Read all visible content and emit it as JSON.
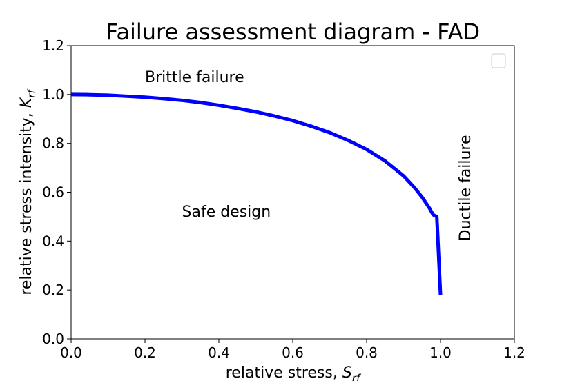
{
  "chart_data": {
    "type": "line",
    "title": "Failure assessment diagram - FAD",
    "xlabel": {
      "main": "relative stress, ",
      "symbol": "S",
      "sub": "rf"
    },
    "ylabel": {
      "main": "relative stress intensity, ",
      "symbol": "K",
      "sub": "rf"
    },
    "xlim": [
      0.0,
      1.2
    ],
    "ylim": [
      0.0,
      1.2
    ],
    "xticks": [
      0.0,
      0.2,
      0.4,
      0.6,
      0.8,
      1.0,
      1.2
    ],
    "xtick_labels": [
      "0.0",
      "0.2",
      "0.4",
      "0.6",
      "0.8",
      "1.0",
      "1.2"
    ],
    "yticks": [
      0.0,
      0.2,
      0.4,
      0.6,
      0.8,
      1.0,
      1.2
    ],
    "ytick_labels": [
      "0.0",
      "0.2",
      "0.4",
      "0.6",
      "0.8",
      "1.0",
      "1.2"
    ],
    "grid": false,
    "legend": {
      "placement": "upper-right",
      "entries": []
    },
    "series": [
      {
        "color": "#0000ff",
        "x": [
          0.0,
          0.05,
          0.1,
          0.15,
          0.2,
          0.25,
          0.3,
          0.35,
          0.4,
          0.45,
          0.5,
          0.55,
          0.6,
          0.65,
          0.7,
          0.75,
          0.8,
          0.85,
          0.9,
          0.93,
          0.95,
          0.97,
          0.98,
          0.99,
          0.995,
          1.0
        ],
        "y": [
          1.0,
          0.999,
          0.997,
          0.993,
          0.989,
          0.983,
          0.976,
          0.967,
          0.956,
          0.943,
          0.929,
          0.912,
          0.893,
          0.87,
          0.844,
          0.812,
          0.775,
          0.728,
          0.667,
          0.618,
          0.58,
          0.535,
          0.508,
          0.5,
          0.34,
          0.18
        ]
      }
    ],
    "annotations": [
      {
        "text": "Brittle failure",
        "x": 0.2,
        "y": 1.05,
        "rotation": 0
      },
      {
        "text": "Safe design",
        "x": 0.3,
        "y": 0.5,
        "rotation": 0
      },
      {
        "text": "Ductile failure",
        "x": 1.05,
        "y": 0.4,
        "rotation": 90
      }
    ]
  }
}
